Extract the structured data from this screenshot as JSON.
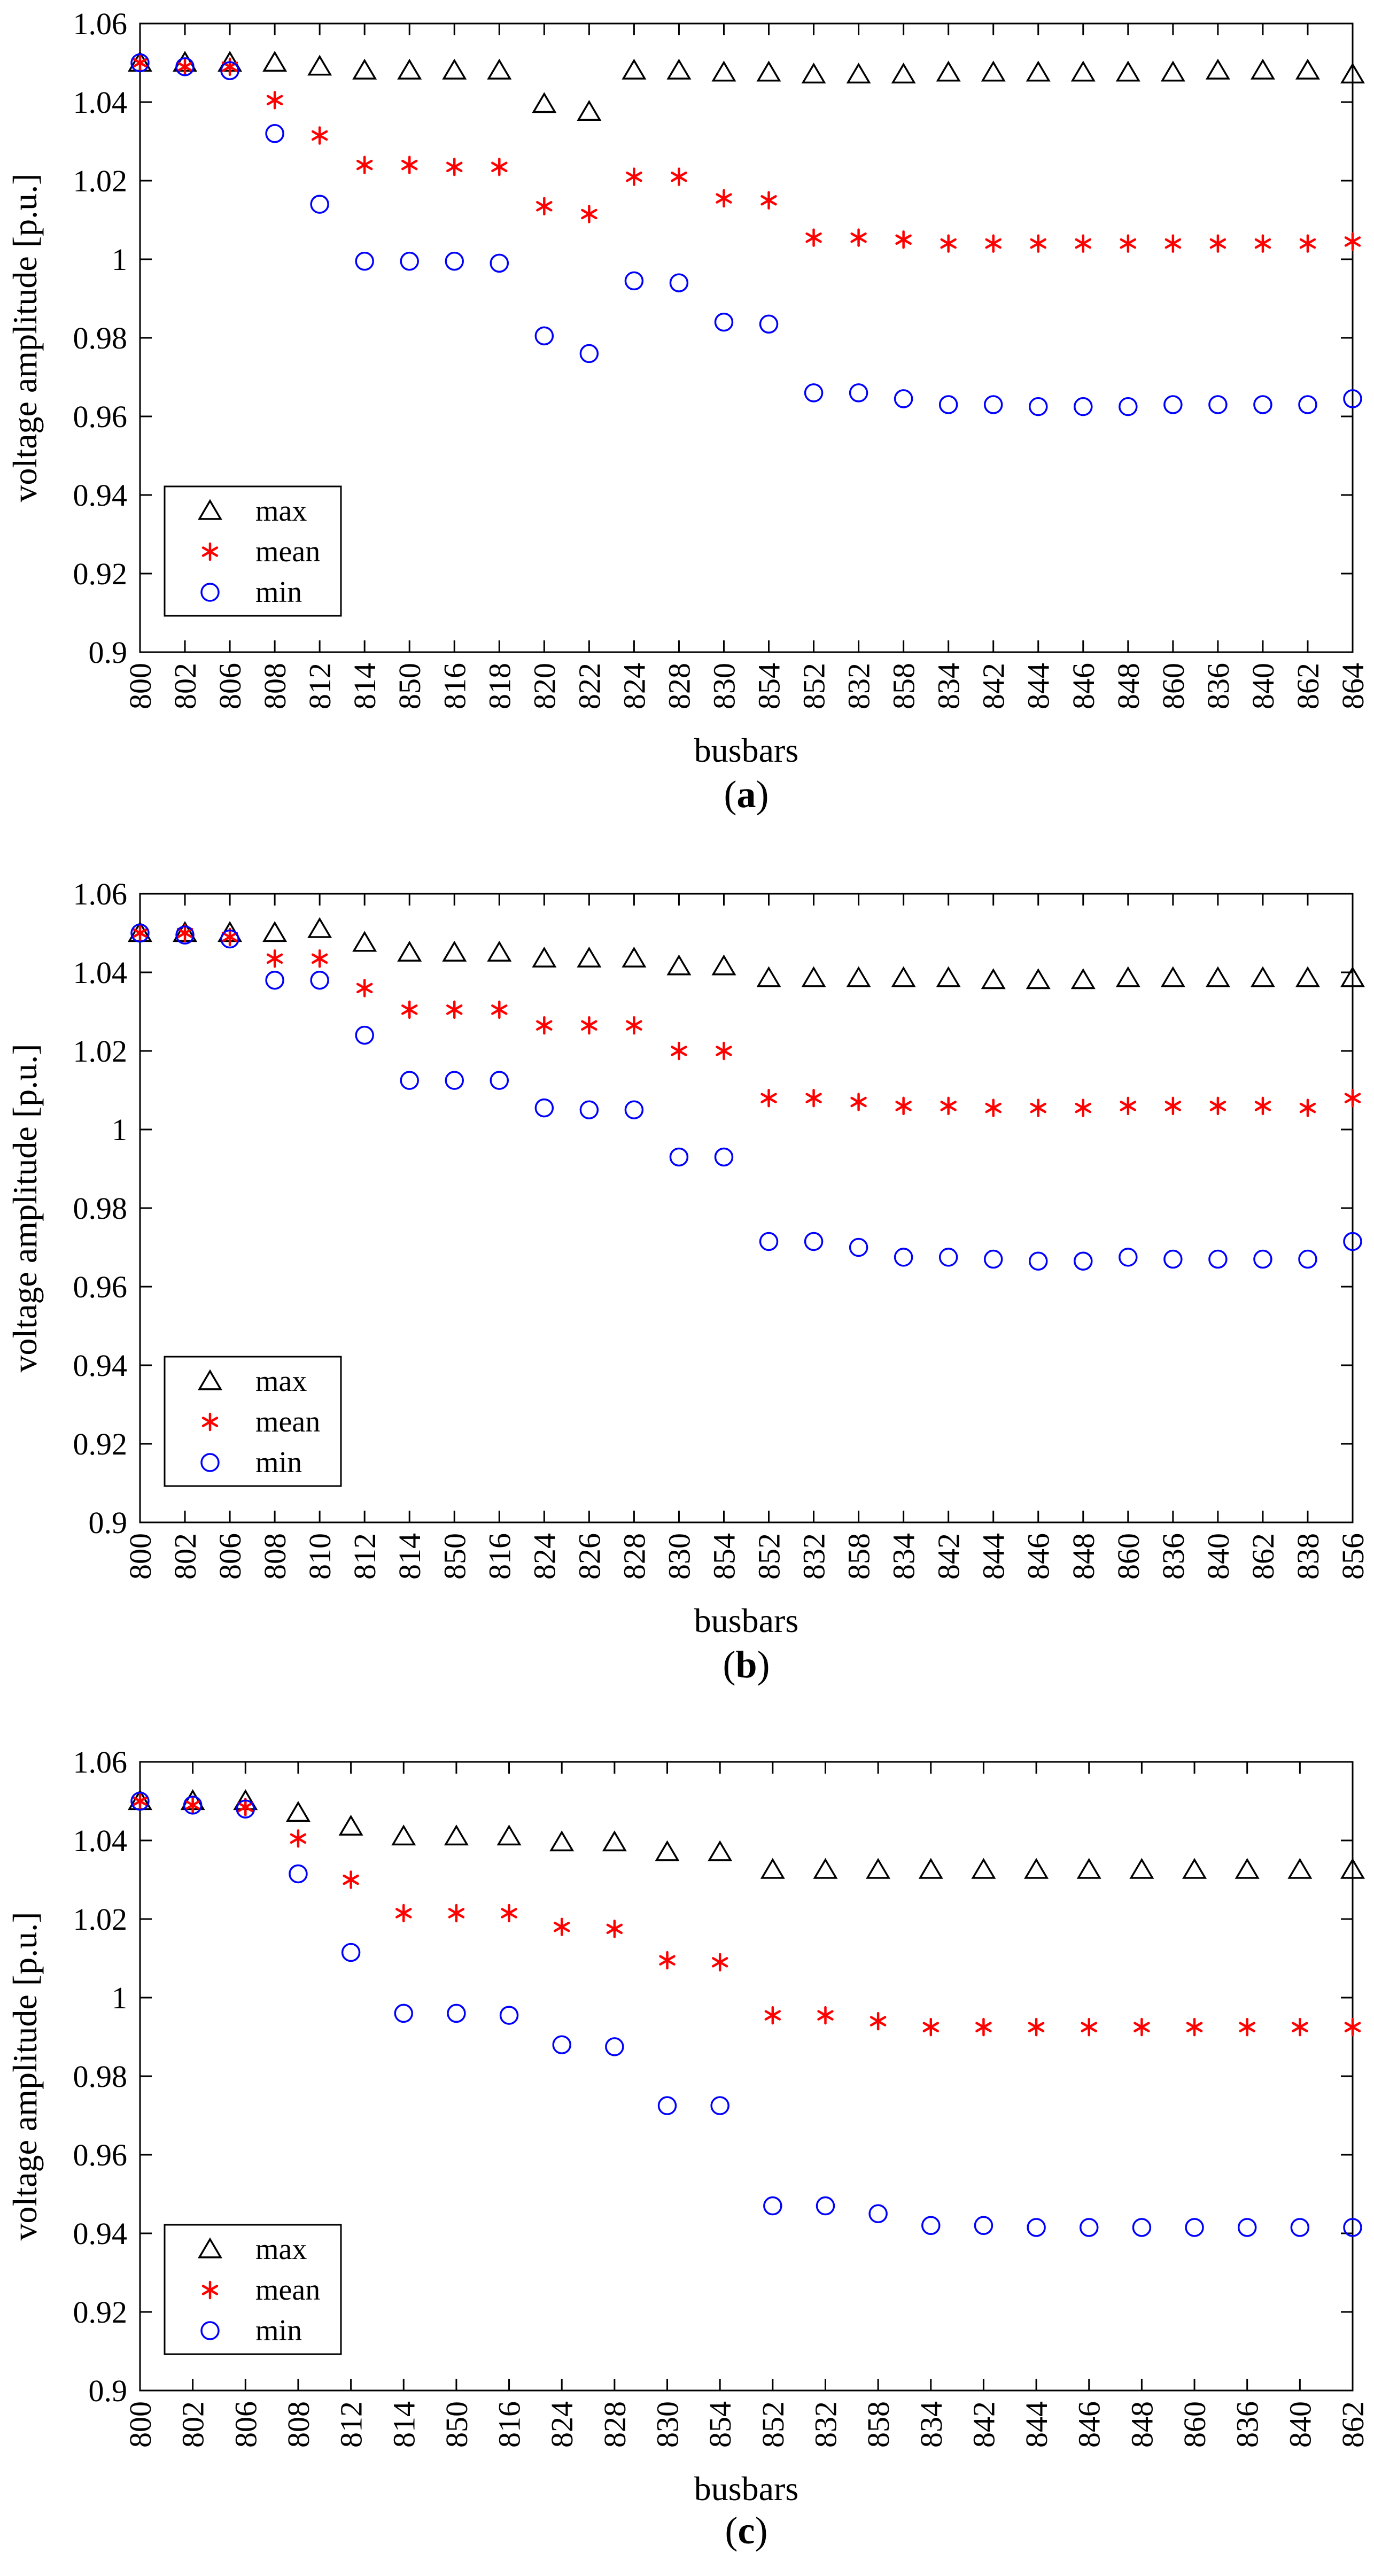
{
  "chart_data": [
    {
      "type": "scatter",
      "panel_label": "(a)",
      "panel_letter": "a",
      "xlabel": "busbars",
      "ylabel": "voltage amplitude [p.u.]",
      "ylim": [
        0.9,
        1.06
      ],
      "yticks": [
        0.9,
        0.92,
        0.94,
        0.96,
        0.98,
        1,
        1.02,
        1.04,
        1.06
      ],
      "ytick_labels": [
        "0.9",
        "0.92",
        "0.94",
        "0.96",
        "0.98",
        "1",
        "1.02",
        "1.04",
        "1.06"
      ],
      "legend_position": "bottom-left",
      "categories": [
        "800",
        "802",
        "806",
        "808",
        "812",
        "814",
        "850",
        "816",
        "818",
        "820",
        "822",
        "824",
        "828",
        "830",
        "854",
        "852",
        "832",
        "858",
        "834",
        "842",
        "844",
        "846",
        "848",
        "860",
        "836",
        "840",
        "862",
        "864"
      ],
      "series": [
        {
          "name": "max",
          "marker": "triangle",
          "color": "#000000",
          "values": [
            1.05,
            1.05,
            1.05,
            1.05,
            1.049,
            1.048,
            1.048,
            1.048,
            1.048,
            1.0395,
            1.0375,
            1.048,
            1.048,
            1.0475,
            1.0475,
            1.047,
            1.047,
            1.047,
            1.0475,
            1.0475,
            1.0475,
            1.0475,
            1.0475,
            1.0475,
            1.048,
            1.048,
            1.048,
            1.047
          ]
        },
        {
          "name": "mean",
          "marker": "asterisk",
          "color": "#ff0000",
          "values": [
            1.05,
            1.049,
            1.049,
            1.0405,
            1.0315,
            1.024,
            1.024,
            1.0235,
            1.0235,
            1.0135,
            1.0115,
            1.021,
            1.021,
            1.0155,
            1.015,
            1.0055,
            1.0055,
            1.005,
            1.004,
            1.004,
            1.004,
            1.004,
            1.004,
            1.004,
            1.004,
            1.004,
            1.004,
            1.0045
          ]
        },
        {
          "name": "min",
          "marker": "circle",
          "color": "#0000ff",
          "values": [
            1.05,
            1.049,
            1.048,
            1.032,
            1.014,
            0.9995,
            0.9995,
            0.9995,
            0.999,
            0.9805,
            0.976,
            0.9945,
            0.994,
            0.984,
            0.9835,
            0.966,
            0.966,
            0.9645,
            0.963,
            0.963,
            0.9625,
            0.9625,
            0.9625,
            0.963,
            0.963,
            0.963,
            0.963,
            0.9645
          ]
        }
      ]
    },
    {
      "type": "scatter",
      "panel_label": "(b)",
      "panel_letter": "b",
      "xlabel": "busbars",
      "ylabel": "voltage amplitude [p.u.]",
      "ylim": [
        0.9,
        1.06
      ],
      "yticks": [
        0.9,
        0.92,
        0.94,
        0.96,
        0.98,
        1,
        1.02,
        1.04,
        1.06
      ],
      "ytick_labels": [
        "0.9",
        "0.92",
        "0.94",
        "0.96",
        "0.98",
        "1",
        "1.02",
        "1.04",
        "1.06"
      ],
      "legend_position": "bottom-left",
      "categories": [
        "800",
        "802",
        "806",
        "808",
        "810",
        "812",
        "814",
        "850",
        "816",
        "824",
        "826",
        "828",
        "830",
        "854",
        "852",
        "832",
        "858",
        "834",
        "842",
        "844",
        "846",
        "848",
        "860",
        "836",
        "840",
        "862",
        "838",
        "856"
      ],
      "series": [
        {
          "name": "max",
          "marker": "triangle",
          "color": "#000000",
          "values": [
            1.05,
            1.05,
            1.05,
            1.05,
            1.051,
            1.0475,
            1.045,
            1.045,
            1.045,
            1.0435,
            1.0435,
            1.0435,
            1.0415,
            1.0415,
            1.0385,
            1.0385,
            1.0385,
            1.0385,
            1.0385,
            1.038,
            1.038,
            1.038,
            1.0385,
            1.0385,
            1.0385,
            1.0385,
            1.0385,
            1.0385
          ]
        },
        {
          "name": "mean",
          "marker": "asterisk",
          "color": "#ff0000",
          "values": [
            1.05,
            1.05,
            1.049,
            1.0435,
            1.0435,
            1.036,
            1.0305,
            1.0305,
            1.0305,
            1.0265,
            1.0265,
            1.0265,
            1.02,
            1.02,
            1.008,
            1.008,
            1.007,
            1.006,
            1.006,
            1.0055,
            1.0055,
            1.0055,
            1.006,
            1.006,
            1.006,
            1.006,
            1.0055,
            1.008
          ]
        },
        {
          "name": "min",
          "marker": "circle",
          "color": "#0000ff",
          "values": [
            1.05,
            1.0495,
            1.0485,
            1.038,
            1.038,
            1.024,
            1.0125,
            1.0125,
            1.0125,
            1.0055,
            1.005,
            1.005,
            0.993,
            0.993,
            0.9715,
            0.9715,
            0.97,
            0.9675,
            0.9675,
            0.967,
            0.9665,
            0.9665,
            0.9675,
            0.967,
            0.967,
            0.967,
            0.967,
            0.9715
          ]
        }
      ]
    },
    {
      "type": "scatter",
      "panel_label": "(c)",
      "panel_letter": "c",
      "xlabel": "busbars",
      "ylabel": "voltage amplitude [p.u.]",
      "ylim": [
        0.9,
        1.06
      ],
      "yticks": [
        0.9,
        0.92,
        0.94,
        0.96,
        0.98,
        1,
        1.02,
        1.04,
        1.06
      ],
      "ytick_labels": [
        "0.9",
        "0.92",
        "0.94",
        "0.96",
        "0.98",
        "1",
        "1.02",
        "1.04",
        "1.06"
      ],
      "legend_position": "bottom-left",
      "categories": [
        "800",
        "802",
        "806",
        "808",
        "812",
        "814",
        "850",
        "816",
        "824",
        "828",
        "830",
        "854",
        "852",
        "832",
        "858",
        "834",
        "842",
        "844",
        "846",
        "848",
        "860",
        "836",
        "840",
        "862"
      ],
      "series": [
        {
          "name": "max",
          "marker": "triangle",
          "color": "#000000",
          "values": [
            1.05,
            1.05,
            1.05,
            1.047,
            1.0435,
            1.041,
            1.041,
            1.041,
            1.0395,
            1.0395,
            1.037,
            1.037,
            1.0325,
            1.0325,
            1.0325,
            1.0325,
            1.0325,
            1.0325,
            1.0325,
            1.0325,
            1.0325,
            1.0325,
            1.0325,
            1.0325
          ]
        },
        {
          "name": "mean",
          "marker": "asterisk",
          "color": "#ff0000",
          "values": [
            1.05,
            1.049,
            1.0485,
            1.0405,
            1.03,
            1.0215,
            1.0215,
            1.0215,
            1.018,
            1.0175,
            1.0095,
            1.009,
            0.9955,
            0.9955,
            0.994,
            0.9925,
            0.9925,
            0.9925,
            0.9925,
            0.9925,
            0.9925,
            0.9925,
            0.9925,
            0.9925
          ]
        },
        {
          "name": "min",
          "marker": "circle",
          "color": "#0000ff",
          "values": [
            1.05,
            1.049,
            1.048,
            1.0315,
            1.0115,
            0.996,
            0.996,
            0.9955,
            0.988,
            0.9875,
            0.9725,
            0.9725,
            0.947,
            0.947,
            0.945,
            0.942,
            0.942,
            0.9415,
            0.9415,
            0.9415,
            0.9415,
            0.9415,
            0.9415,
            0.9415
          ]
        }
      ]
    }
  ]
}
